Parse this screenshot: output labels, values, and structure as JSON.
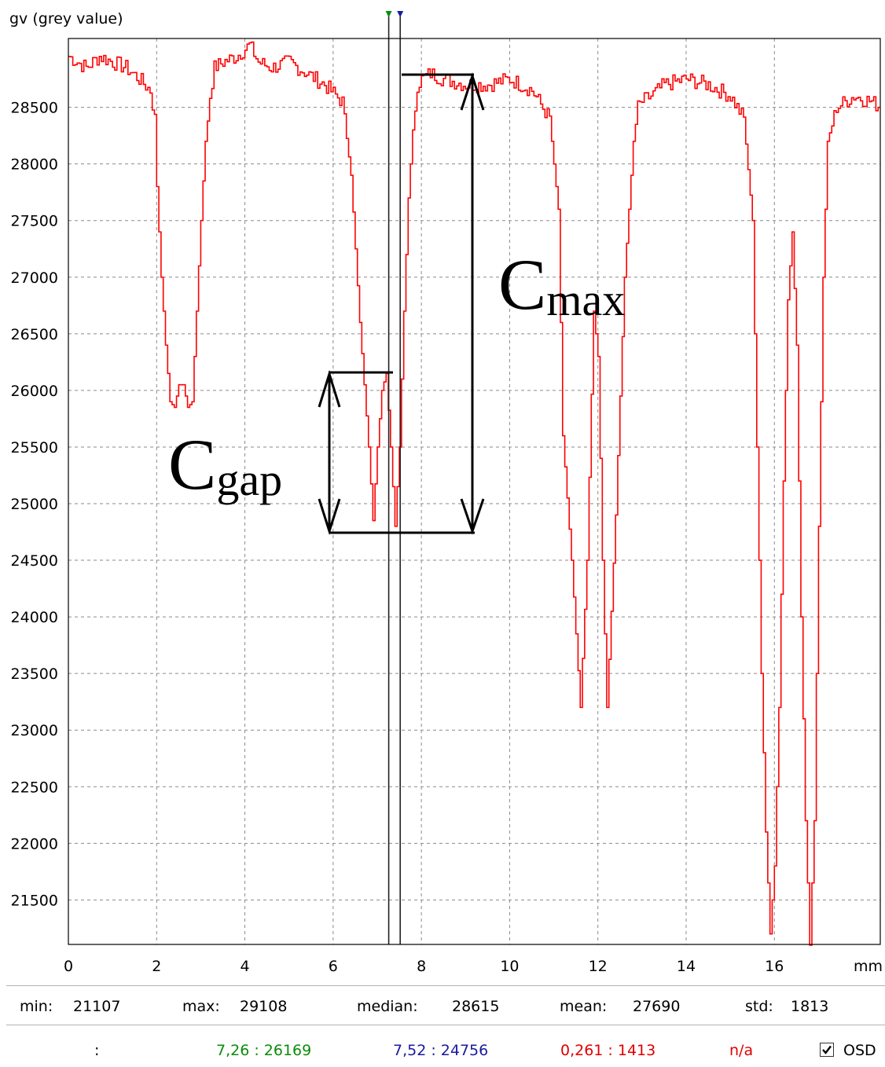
{
  "chart_data": {
    "type": "line",
    "y_axis_title": "gv (grey value)",
    "x_unit_label": "mm",
    "xlim": [
      0,
      18.4
    ],
    "ylim": [
      21107,
      29108
    ],
    "x_ticks": [
      0,
      2,
      4,
      6,
      8,
      10,
      12,
      14,
      16
    ],
    "y_ticks": [
      21500,
      22000,
      22500,
      23000,
      23500,
      24000,
      24500,
      25000,
      25500,
      26000,
      26500,
      27000,
      27500,
      28000,
      28500
    ],
    "grid": true,
    "series": [
      {
        "color": "#ff0000",
        "x": [
          0.0,
          0.4,
          0.7,
          1.0,
          1.3,
          1.6,
          1.85,
          1.95,
          2.0,
          2.1,
          2.2,
          2.3,
          2.4,
          2.5,
          2.6,
          2.7,
          2.8,
          2.9,
          3.0,
          3.1,
          3.2,
          3.3,
          3.5,
          3.8,
          4.1,
          4.3,
          4.6,
          5.0,
          5.4,
          5.8,
          6.2,
          6.4,
          6.6,
          6.8,
          6.9,
          7.0,
          7.1,
          7.2,
          7.3,
          7.4,
          7.5,
          7.6,
          7.7,
          7.8,
          7.9,
          8.0,
          8.2,
          8.5,
          9.0,
          9.5,
          10.0,
          10.5,
          10.9,
          11.1,
          11.2,
          11.4,
          11.6,
          11.75,
          11.9,
          12.0,
          12.1,
          12.2,
          12.4,
          12.6,
          12.8,
          12.9,
          13.0,
          13.2,
          13.5,
          14.0,
          14.5,
          15.0,
          15.3,
          15.5,
          15.6,
          15.7,
          15.8,
          15.9,
          16.0,
          16.1,
          16.2,
          16.3,
          16.4,
          16.5,
          16.6,
          16.7,
          16.8,
          16.9,
          17.0,
          17.1,
          17.2,
          17.4,
          17.8,
          18.2,
          18.4
        ],
        "y": [
          28950,
          28850,
          28950,
          28900,
          28850,
          28750,
          28650,
          28400,
          27800,
          27000,
          26400,
          25900,
          25850,
          26050,
          26050,
          25850,
          25900,
          26700,
          27500,
          28200,
          28600,
          28850,
          28900,
          28950,
          29050,
          28900,
          28850,
          28900,
          28800,
          28700,
          28550,
          27900,
          26600,
          25500,
          24850,
          25500,
          26000,
          26150,
          25500,
          24800,
          25500,
          26700,
          27700,
          28300,
          28700,
          28750,
          28800,
          28750,
          28700,
          28700,
          28750,
          28650,
          28400,
          27600,
          25600,
          24500,
          23200,
          24500,
          26700,
          26300,
          24500,
          23200,
          24900,
          27000,
          28200,
          28500,
          28550,
          28600,
          28700,
          28750,
          28700,
          28600,
          28400,
          27500,
          25500,
          23500,
          22100,
          21200,
          21800,
          23200,
          25200,
          26800,
          27400,
          26400,
          24000,
          22200,
          21100,
          22200,
          24800,
          27000,
          28200,
          28500,
          28600,
          28550,
          28500
        ]
      }
    ],
    "cursors": [
      {
        "x": 7.26,
        "color": "#0a8c0a"
      },
      {
        "x": 7.52,
        "color": "#1a1aa0"
      }
    ],
    "annotations": [
      {
        "text": "C",
        "sub": "max"
      },
      {
        "text": "C",
        "sub": "gap"
      }
    ]
  },
  "stats": {
    "min_label": "min:",
    "min_value": "21107",
    "max_label": "max:",
    "max_value": "29108",
    "median_label": "median:",
    "median_value": "28615",
    "mean_label": "mean:",
    "mean_value": "27690",
    "std_label": "std:",
    "std_value": "1813"
  },
  "cursor_readout": {
    "prefix": ":",
    "green": "7,26 : 26169",
    "blue": "7,52 : 24756",
    "red": "0,261 : 1413",
    "na": "n/a",
    "osd_label": "OSD",
    "osd_checked": true,
    "green_color": "#0a8c0a",
    "blue_color": "#1a1aa0",
    "red_color": "#e00000"
  }
}
